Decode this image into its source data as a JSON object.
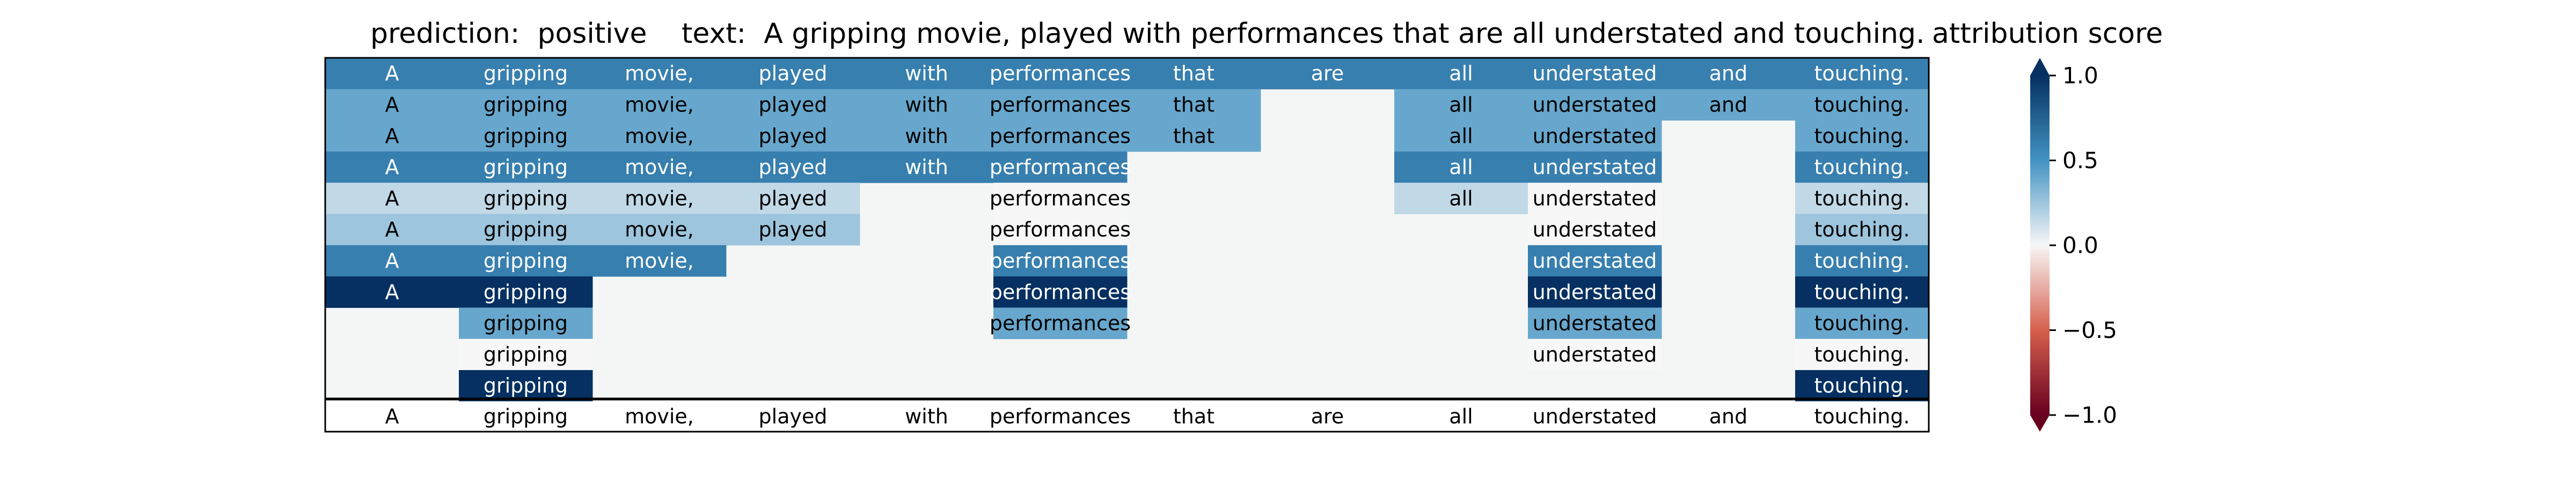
{
  "header": {
    "prediction_label": "prediction:",
    "prediction_value": "positive",
    "text_label": "text:",
    "text_value": "A gripping movie, played with performances that are all understated and touching.",
    "colorbar_title": "attribution score"
  },
  "chart_data": {
    "type": "heatmap",
    "tokens": [
      "A",
      "gripping",
      "movie,",
      "played",
      "with",
      "performances",
      "that",
      "are",
      "all",
      "understated",
      "and",
      "touching."
    ],
    "rows": [
      [
        0.6,
        0.6,
        0.6,
        0.6,
        0.6,
        0.6,
        0.6,
        0.6,
        0.6,
        0.6,
        0.6,
        0.6
      ],
      [
        0.4,
        0.4,
        0.4,
        0.4,
        0.4,
        0.4,
        0.4,
        null,
        0.4,
        0.4,
        0.4,
        0.4
      ],
      [
        0.4,
        0.4,
        0.4,
        0.4,
        0.4,
        0.4,
        0.4,
        null,
        0.4,
        0.4,
        null,
        0.4
      ],
      [
        0.6,
        0.6,
        0.6,
        0.6,
        0.6,
        0.6,
        null,
        null,
        0.6,
        0.6,
        null,
        0.6
      ],
      [
        0.15,
        0.15,
        0.15,
        0.15,
        null,
        0.0,
        null,
        null,
        0.15,
        0.0,
        null,
        0.15
      ],
      [
        0.25,
        0.25,
        0.25,
        0.25,
        null,
        0.0,
        null,
        null,
        null,
        0.0,
        null,
        0.25
      ],
      [
        0.6,
        0.6,
        0.6,
        null,
        null,
        0.6,
        null,
        null,
        null,
        0.6,
        null,
        0.6
      ],
      [
        1.0,
        1.0,
        null,
        null,
        null,
        1.0,
        null,
        null,
        null,
        1.0,
        null,
        1.0
      ],
      [
        null,
        0.4,
        null,
        null,
        null,
        0.4,
        null,
        null,
        null,
        0.4,
        null,
        0.4
      ],
      [
        null,
        0.0,
        null,
        null,
        null,
        null,
        null,
        null,
        null,
        0.0,
        null,
        0.0
      ],
      [
        null,
        1.0,
        null,
        null,
        null,
        null,
        null,
        null,
        null,
        null,
        null,
        1.0
      ]
    ],
    "bottom_row": [
      "A",
      "gripping",
      "movie,",
      "played",
      "with",
      "performances",
      "that",
      "are",
      "all",
      "understated",
      "and",
      "touching."
    ],
    "colorbar": {
      "title": "attribution score",
      "range": [
        -1.0,
        1.0
      ],
      "ticks": [
        1.0,
        0.5,
        0.0,
        -0.5,
        -1.0
      ],
      "tick_labels": [
        "1.0",
        "0.5",
        "0.0",
        "−0.5",
        "−1.0"
      ],
      "colormap": "RdBu"
    },
    "colors": {
      "empty_cell": "#f4f6f6",
      "neg_extreme": "#67001f",
      "neg_mid": "#d6604d",
      "zero": "#f7f7f7",
      "pos_mid": "#4393c3",
      "pos_extreme": "#053061"
    }
  }
}
